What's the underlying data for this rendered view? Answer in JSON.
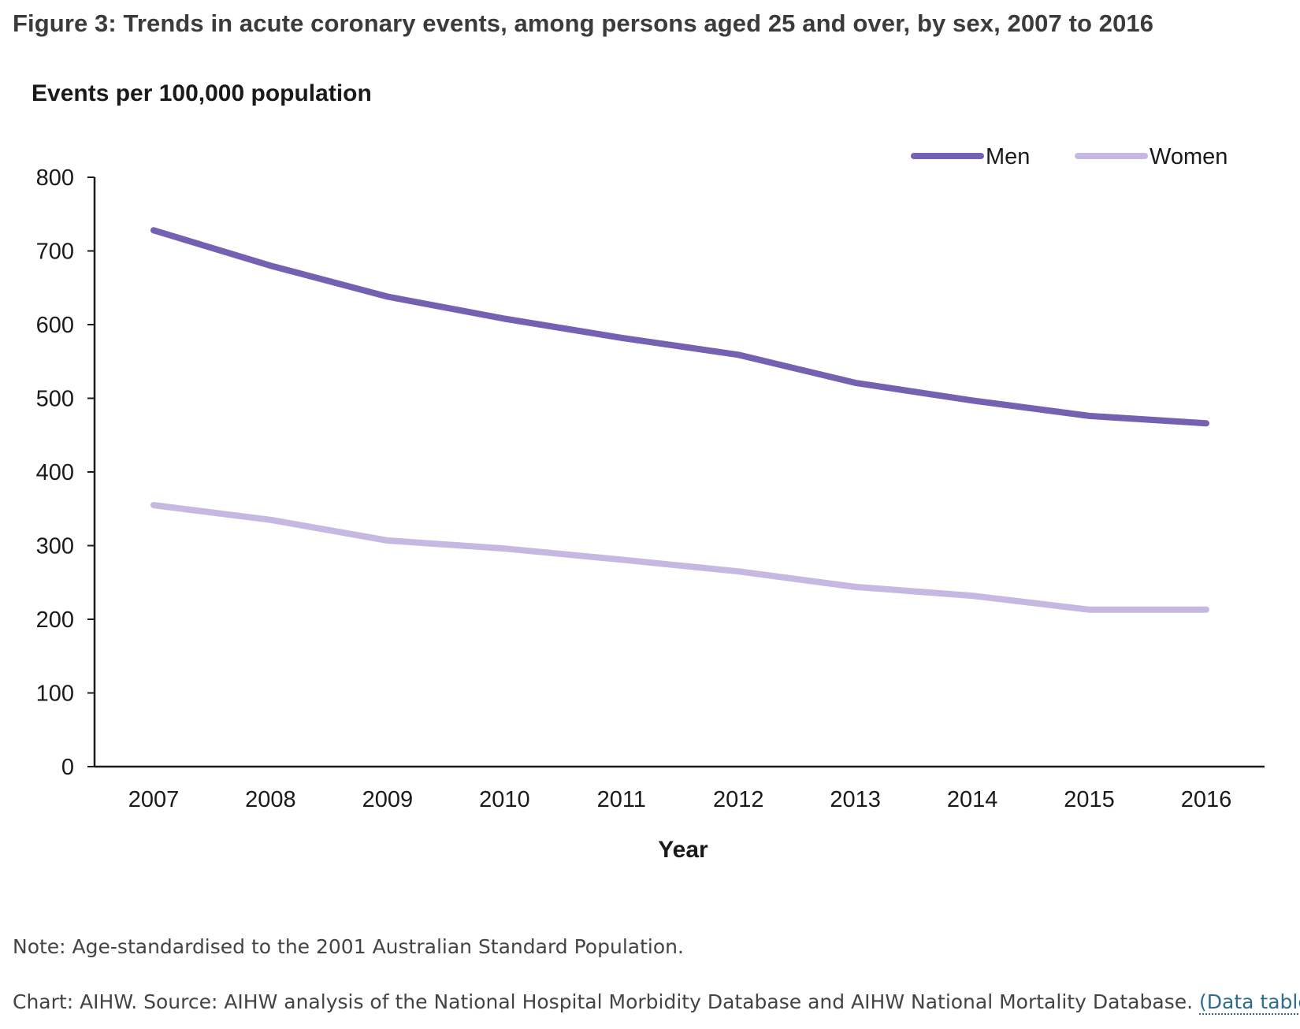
{
  "figure_title": "Figure 3: Trends in acute coronary events, among persons aged 25 and over, by sex, 2007 to 2016",
  "note": "Note: Age-standardised to the 2001 Australian Standard Population.",
  "source_text": "Chart: AIHW. Source: AIHW analysis of the National Hospital Morbidity Database and AIHW National Mortality Database.",
  "data_table_link": "(Data table)",
  "colors": {
    "men": "#7461b2",
    "women": "#c6b8e1",
    "axis": "#1a1a1a"
  },
  "chart_data": {
    "type": "line",
    "title": "",
    "ylabel": "Events per 100,000 population",
    "xlabel": "Year",
    "ylim": [
      0,
      800
    ],
    "yticks": [
      "0",
      "100",
      "200",
      "300",
      "400",
      "500",
      "600",
      "700",
      "800"
    ],
    "categories": [
      "2007",
      "2008",
      "2009",
      "2010",
      "2011",
      "2012",
      "2013",
      "2014",
      "2015",
      "2016"
    ],
    "legend_position": "top-right",
    "grid": false,
    "series": [
      {
        "name": "Men",
        "values": [
          728,
          680,
          638,
          608,
          582,
          559,
          521,
          497,
          476,
          466
        ]
      },
      {
        "name": "Women",
        "values": [
          355,
          335,
          307,
          296,
          281,
          265,
          244,
          232,
          213,
          213
        ]
      }
    ]
  }
}
